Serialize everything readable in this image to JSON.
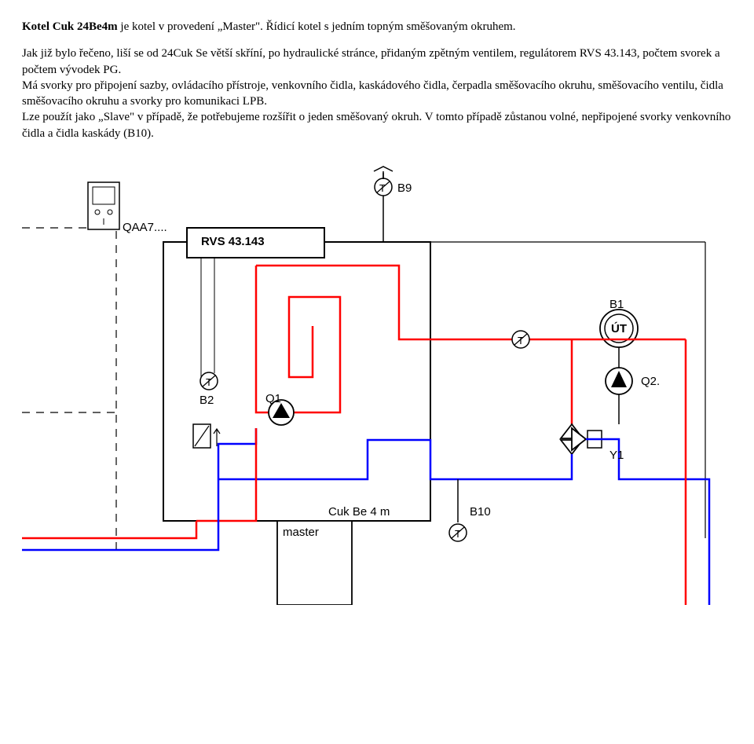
{
  "heading_bold": "Kotel Cuk 24Be4m",
  "heading_rest": " je kotel v provedení „Master\". Řídicí kotel s jedním topným směšovaným okruhem.",
  "para": "Jak již bylo řečeno, liší se od 24Cuk Se větší skříní, po hydraulické stránce, přidaným zpětným ventilem, regulátorem RVS 43.143, počtem svorek a počtem vývodek PG.\nMá svorky pro připojení sazby, ovládacího přístroje, venkovního čidla, kaskádového čidla, čerpadla směšovacího okruhu, směšovacího ventilu, čidla směšovacího okruhu a svorky pro komunikaci LPB.\nLze použít jako „Slave\" v případě, že potřebujeme rozšířit o jeden směšovaný okruh. V tomto případě zůstanou volné, nepřipojené svorky venkovního čidla a čidla kaskády (B10).",
  "diagram": {
    "labels": {
      "qaa7": "QAA7....",
      "rvs": "RVS 43.143",
      "b9": "B9",
      "b1": "B1",
      "ut": "ÚT",
      "q2": "Q2.",
      "y1": "Y1",
      "b2": "B2",
      "q1": "Q1",
      "cuk": "Cuk Be 4 m",
      "master": "master",
      "b10": "B10",
      "T": "T"
    },
    "colors": {
      "black": "#000000",
      "red": "#ff0000",
      "blue": "#0000ff",
      "white": "#ffffff"
    },
    "stroke_thin": 1.2,
    "stroke_med": 2,
    "stroke_thick": 2.5
  }
}
